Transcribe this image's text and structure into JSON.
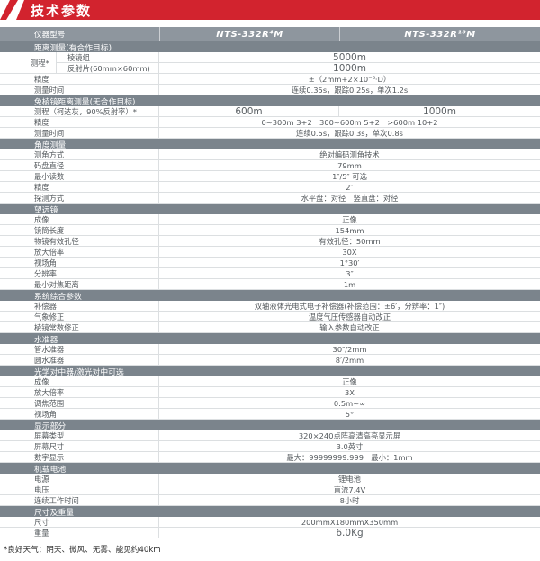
{
  "header": {
    "title": "技术参数"
  },
  "colors": {
    "accent": "#d2232e",
    "column_header_bg": "#8e969e",
    "section_bar_bg": "#7b848c"
  },
  "table": {
    "columns_header": {
      "label": "仪器型号",
      "models": [
        "NTS-332R⁴M",
        "NTS-332R¹⁰M"
      ]
    },
    "rows": [
      {
        "type": "section",
        "label": "距离测量(有合作目标)"
      },
      {
        "type": "group",
        "label": "测程*",
        "big": true,
        "rows": [
          {
            "label": "棱镜组",
            "value": "5000m"
          },
          {
            "label": "反射片(60mm×60mm)",
            "value": "1000m"
          }
        ]
      },
      {
        "type": "row",
        "label": "精度",
        "value": "±（2mm+2×10⁻⁶·D）"
      },
      {
        "type": "row",
        "label": "测量时间",
        "value": "连续0.35s，跟踪0.25s，单次1.2s"
      },
      {
        "type": "section",
        "label": "免棱镜距离测量(无合作目标)"
      },
      {
        "type": "split",
        "label": "测程（柯达灰，90%反射率）*",
        "big": true,
        "values": [
          "600m",
          "1000m"
        ]
      },
      {
        "type": "row",
        "label": "精度",
        "value": "0~300m 3+2　300~600m 5+2　>600m 10+2"
      },
      {
        "type": "row",
        "label": "测量时间",
        "value": "连续0.5s，跟踪0.3s，单次0.8s"
      },
      {
        "type": "section",
        "label": "角度测量"
      },
      {
        "type": "row",
        "label": "测角方式",
        "value": "绝对编码测角技术"
      },
      {
        "type": "row",
        "label": "码盘直径",
        "value": "79mm"
      },
      {
        "type": "row",
        "label": "最小读数",
        "value": "1″/5″ 可选"
      },
      {
        "type": "row",
        "label": "精度",
        "value": "2″"
      },
      {
        "type": "row",
        "label": "探测方式",
        "value": "水平盘：对径　竖直盘：对径"
      },
      {
        "type": "section",
        "label": "望远镜"
      },
      {
        "type": "row",
        "label": "成像",
        "value": "正像"
      },
      {
        "type": "row",
        "label": "镜筒长度",
        "value": "154mm"
      },
      {
        "type": "row",
        "label": "物镜有效孔径",
        "value": "有效孔径：50mm"
      },
      {
        "type": "row",
        "label": "放大倍率",
        "value": "30X"
      },
      {
        "type": "row",
        "label": "视场角",
        "value": "1°30′"
      },
      {
        "type": "row",
        "label": "分辨率",
        "value": "3″"
      },
      {
        "type": "row",
        "label": "最小对焦距离",
        "value": "1m"
      },
      {
        "type": "section",
        "label": "系统综合参数"
      },
      {
        "type": "row",
        "label": "补偿器",
        "value": "双轴液体光电式电子补偿器(补偿范围：±6′，分辨率：1″)"
      },
      {
        "type": "row",
        "label": "气象修正",
        "value": "温度气压传感器自动改正"
      },
      {
        "type": "row",
        "label": "棱镜常数修正",
        "value": "输入参数自动改正"
      },
      {
        "type": "section",
        "label": "水准器"
      },
      {
        "type": "row",
        "label": "管水准器",
        "value": "30″/2mm"
      },
      {
        "type": "row",
        "label": "圆水准器",
        "value": "8′/2mm"
      },
      {
        "type": "section",
        "label": "光学对中器/激光对中可选"
      },
      {
        "type": "row",
        "label": "成像",
        "value": "正像"
      },
      {
        "type": "row",
        "label": "放大倍率",
        "value": "3X"
      },
      {
        "type": "row",
        "label": "调焦范围",
        "value": "0.5m~∞"
      },
      {
        "type": "row",
        "label": "视场角",
        "value": "5°"
      },
      {
        "type": "section",
        "label": "显示部分"
      },
      {
        "type": "row",
        "label": "屏幕类型",
        "value": "320×240点阵高清高亮显示屏"
      },
      {
        "type": "row",
        "label": "屏幕尺寸",
        "value": "3.0英寸"
      },
      {
        "type": "row",
        "label": "数字显示",
        "value": "最大：99999999.999　最小：1mm"
      },
      {
        "type": "section",
        "label": "机载电池"
      },
      {
        "type": "row",
        "label": "电源",
        "value": "锂电池"
      },
      {
        "type": "row",
        "label": "电压",
        "value": "直流7.4V"
      },
      {
        "type": "row",
        "label": "连续工作时间",
        "value": "8小时"
      },
      {
        "type": "section",
        "label": "尺寸及重量"
      },
      {
        "type": "row",
        "label": "尺寸",
        "value": "200mmX180mmX350mm"
      },
      {
        "type": "row",
        "label": "重量",
        "value": "6.0Kg",
        "big": true
      }
    ]
  },
  "footnote": "*良好天气：阴天、微风、无雾、能见约40km"
}
